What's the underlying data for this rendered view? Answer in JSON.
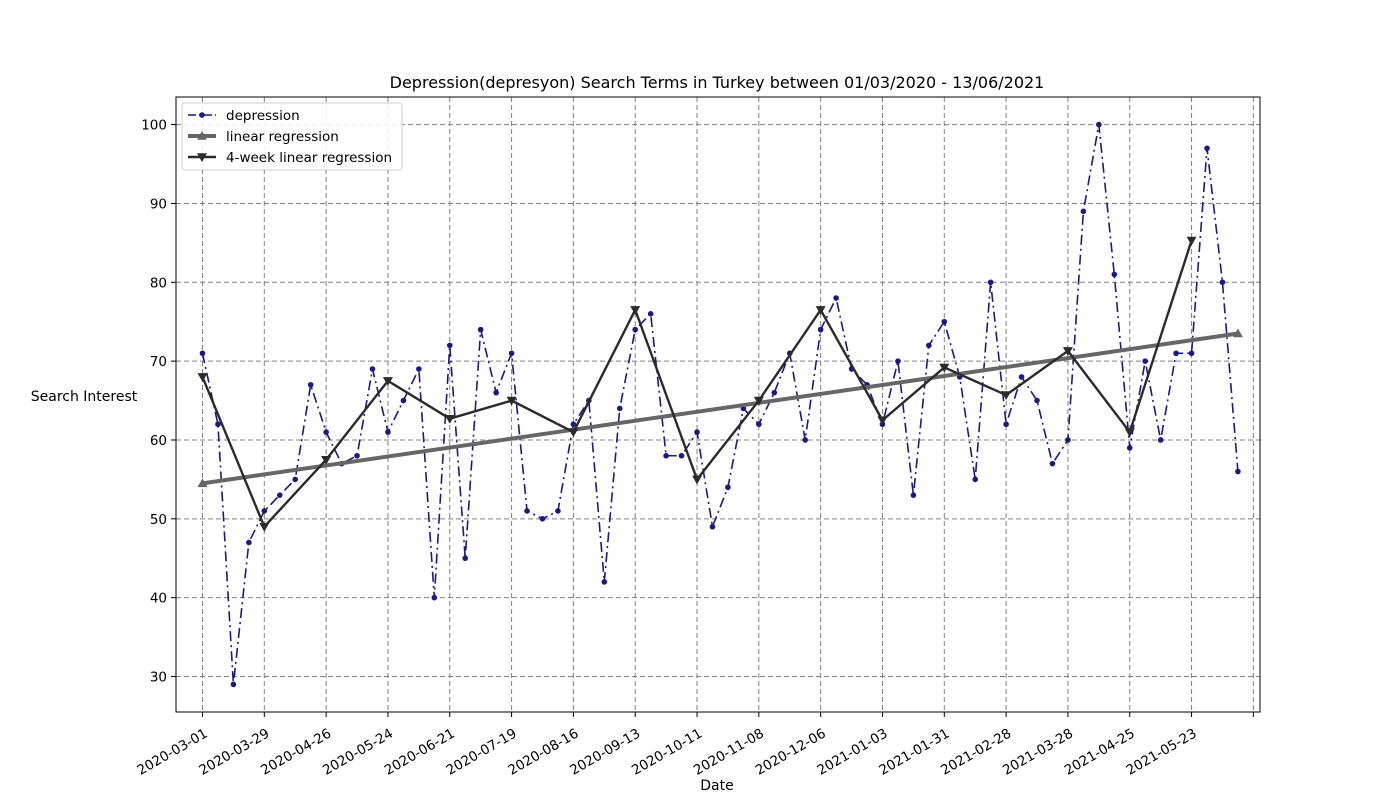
{
  "chart_data": {
    "type": "line",
    "title": "Depression(depresyon) Search Terms in Turkey between 01/03/2020 - 13/06/2021",
    "xlabel": "Date",
    "ylabel": "Search Interest",
    "xlim": [
      "2020-02-18",
      "2021-06-23"
    ],
    "ylim": [
      25.5,
      103.5
    ],
    "x_ticks": [
      "2020-03-01",
      "2020-03-29",
      "2020-04-26",
      "2020-05-24",
      "2020-06-21",
      "2020-07-19",
      "2020-08-16",
      "2020-09-13",
      "2020-10-11",
      "2020-11-08",
      "2020-12-06",
      "2021-01-03",
      "2021-01-31",
      "2021-02-28",
      "2021-03-28",
      "2021-04-25",
      "2021-05-23"
    ],
    "y_ticks": [
      30,
      40,
      50,
      60,
      70,
      80,
      90,
      100
    ],
    "grid": true,
    "legend_position": "top-left",
    "series": [
      {
        "name": "depression",
        "color": "#1a1a80",
        "style": "dash-dot",
        "marker": "dot",
        "x": [
          "2020-03-01",
          "2020-03-08",
          "2020-03-15",
          "2020-03-22",
          "2020-03-29",
          "2020-04-05",
          "2020-04-12",
          "2020-04-19",
          "2020-04-26",
          "2020-05-03",
          "2020-05-10",
          "2020-05-17",
          "2020-05-24",
          "2020-05-31",
          "2020-06-07",
          "2020-06-14",
          "2020-06-21",
          "2020-06-28",
          "2020-07-05",
          "2020-07-12",
          "2020-07-19",
          "2020-07-26",
          "2020-08-02",
          "2020-08-09",
          "2020-08-16",
          "2020-08-23",
          "2020-08-30",
          "2020-09-06",
          "2020-09-13",
          "2020-09-20",
          "2020-09-27",
          "2020-10-04",
          "2020-10-11",
          "2020-10-18",
          "2020-10-25",
          "2020-11-01",
          "2020-11-08",
          "2020-11-15",
          "2020-11-22",
          "2020-11-29",
          "2020-12-06",
          "2020-12-13",
          "2020-12-20",
          "2020-12-27",
          "2021-01-03",
          "2021-01-10",
          "2021-01-17",
          "2021-01-24",
          "2021-01-31",
          "2021-02-07",
          "2021-02-14",
          "2021-02-21",
          "2021-02-28",
          "2021-03-07",
          "2021-03-14",
          "2021-03-21",
          "2021-03-28",
          "2021-04-04",
          "2021-04-11",
          "2021-04-18",
          "2021-04-25",
          "2021-05-02",
          "2021-05-09",
          "2021-05-16",
          "2021-05-23",
          "2021-05-30",
          "2021-06-06",
          "2021-06-13"
        ],
        "y": [
          71,
          62,
          29,
          47,
          51,
          53,
          55,
          67,
          61,
          57,
          58,
          69,
          61,
          65,
          69,
          40,
          72,
          45,
          74,
          66,
          71,
          51,
          50,
          51,
          62,
          65,
          42,
          64,
          74,
          76,
          58,
          58,
          61,
          49,
          54,
          64,
          62,
          66,
          71,
          60,
          74,
          78,
          69,
          67,
          62,
          70,
          53,
          72,
          75,
          68,
          55,
          80,
          62,
          68,
          65,
          57,
          60,
          89,
          100,
          81,
          59,
          70,
          60,
          71,
          71,
          97,
          80,
          56
        ]
      },
      {
        "name": "linear regression",
        "color": "#666666",
        "style": "solid",
        "marker": "triangle-up",
        "x": [
          "2020-03-01",
          "2021-06-13"
        ],
        "y": [
          54.5,
          73.5
        ]
      },
      {
        "name": "4-week linear regression",
        "color": "#2b2b2b",
        "style": "solid",
        "marker": "triangle-down",
        "x": [
          "2020-03-01",
          "2020-03-29",
          "2020-04-26",
          "2020-05-24",
          "2020-06-21",
          "2020-07-19",
          "2020-08-16",
          "2020-09-13",
          "2020-10-11",
          "2020-11-08",
          "2020-12-06",
          "2021-01-03",
          "2021-01-31",
          "2021-02-28",
          "2021-03-28",
          "2021-04-25",
          "2021-05-23"
        ],
        "y": [
          68,
          49,
          57.5,
          67.5,
          62.7,
          65,
          61,
          76.5,
          55,
          65,
          76.5,
          62.5,
          69.2,
          65.7,
          71.3,
          61,
          85.3
        ]
      }
    ]
  }
}
